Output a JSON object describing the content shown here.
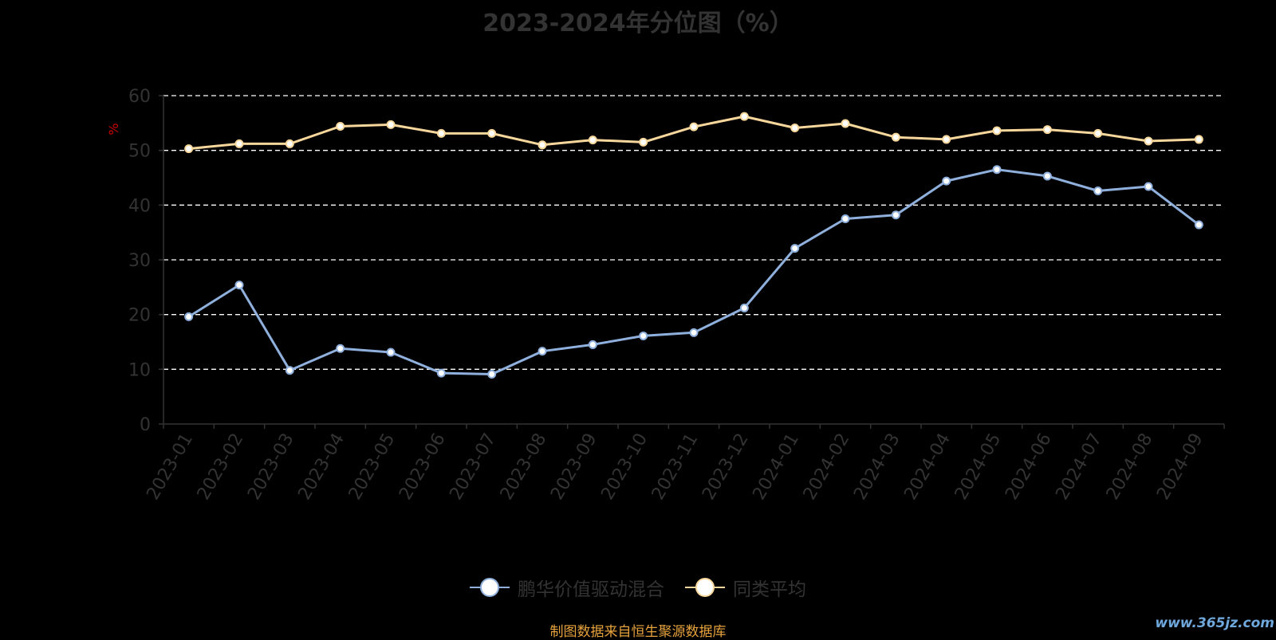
{
  "chart_data": {
    "type": "line",
    "title": "2023-2024年分位图（%）",
    "ylabel": "%",
    "ylim": [
      0,
      60
    ],
    "yticks": [
      0,
      10,
      20,
      30,
      40,
      50,
      60
    ],
    "grid": true,
    "legend_position": "bottom-center",
    "categories": [
      "2023-01",
      "2023-02",
      "2023-03",
      "2023-04",
      "2023-05",
      "2023-06",
      "2023-07",
      "2023-08",
      "2023-09",
      "2023-10",
      "2023-11",
      "2023-12",
      "2024-01",
      "2024-02",
      "2024-03",
      "2024-04",
      "2024-05",
      "2024-06",
      "2024-07",
      "2024-08",
      "2024-09"
    ],
    "series": [
      {
        "name": "鹏华价值驱动混合",
        "color": "#8fb0dc",
        "values": [
          19.6,
          25.4,
          9.8,
          13.8,
          13.1,
          9.3,
          9.1,
          13.3,
          14.5,
          16.1,
          16.7,
          21.2,
          32.1,
          37.5,
          38.2,
          44.4,
          46.5,
          45.3,
          42.6,
          43.4,
          36.4
        ]
      },
      {
        "name": "同类平均",
        "color": "#f7d79b",
        "values": [
          50.3,
          51.2,
          51.2,
          54.4,
          54.7,
          53.1,
          53.1,
          51.0,
          51.9,
          51.5,
          54.3,
          56.2,
          54.1,
          54.9,
          52.4,
          52.0,
          53.6,
          53.8,
          53.1,
          51.7,
          52.0
        ]
      }
    ]
  },
  "footer": {
    "source": "制图数据来自恒生聚源数据库",
    "watermark": "www.365jz.com"
  },
  "colors": {
    "background": "#000000",
    "axis": "#333333",
    "grid": "#ffffff",
    "ylabel": "#cc0000"
  }
}
